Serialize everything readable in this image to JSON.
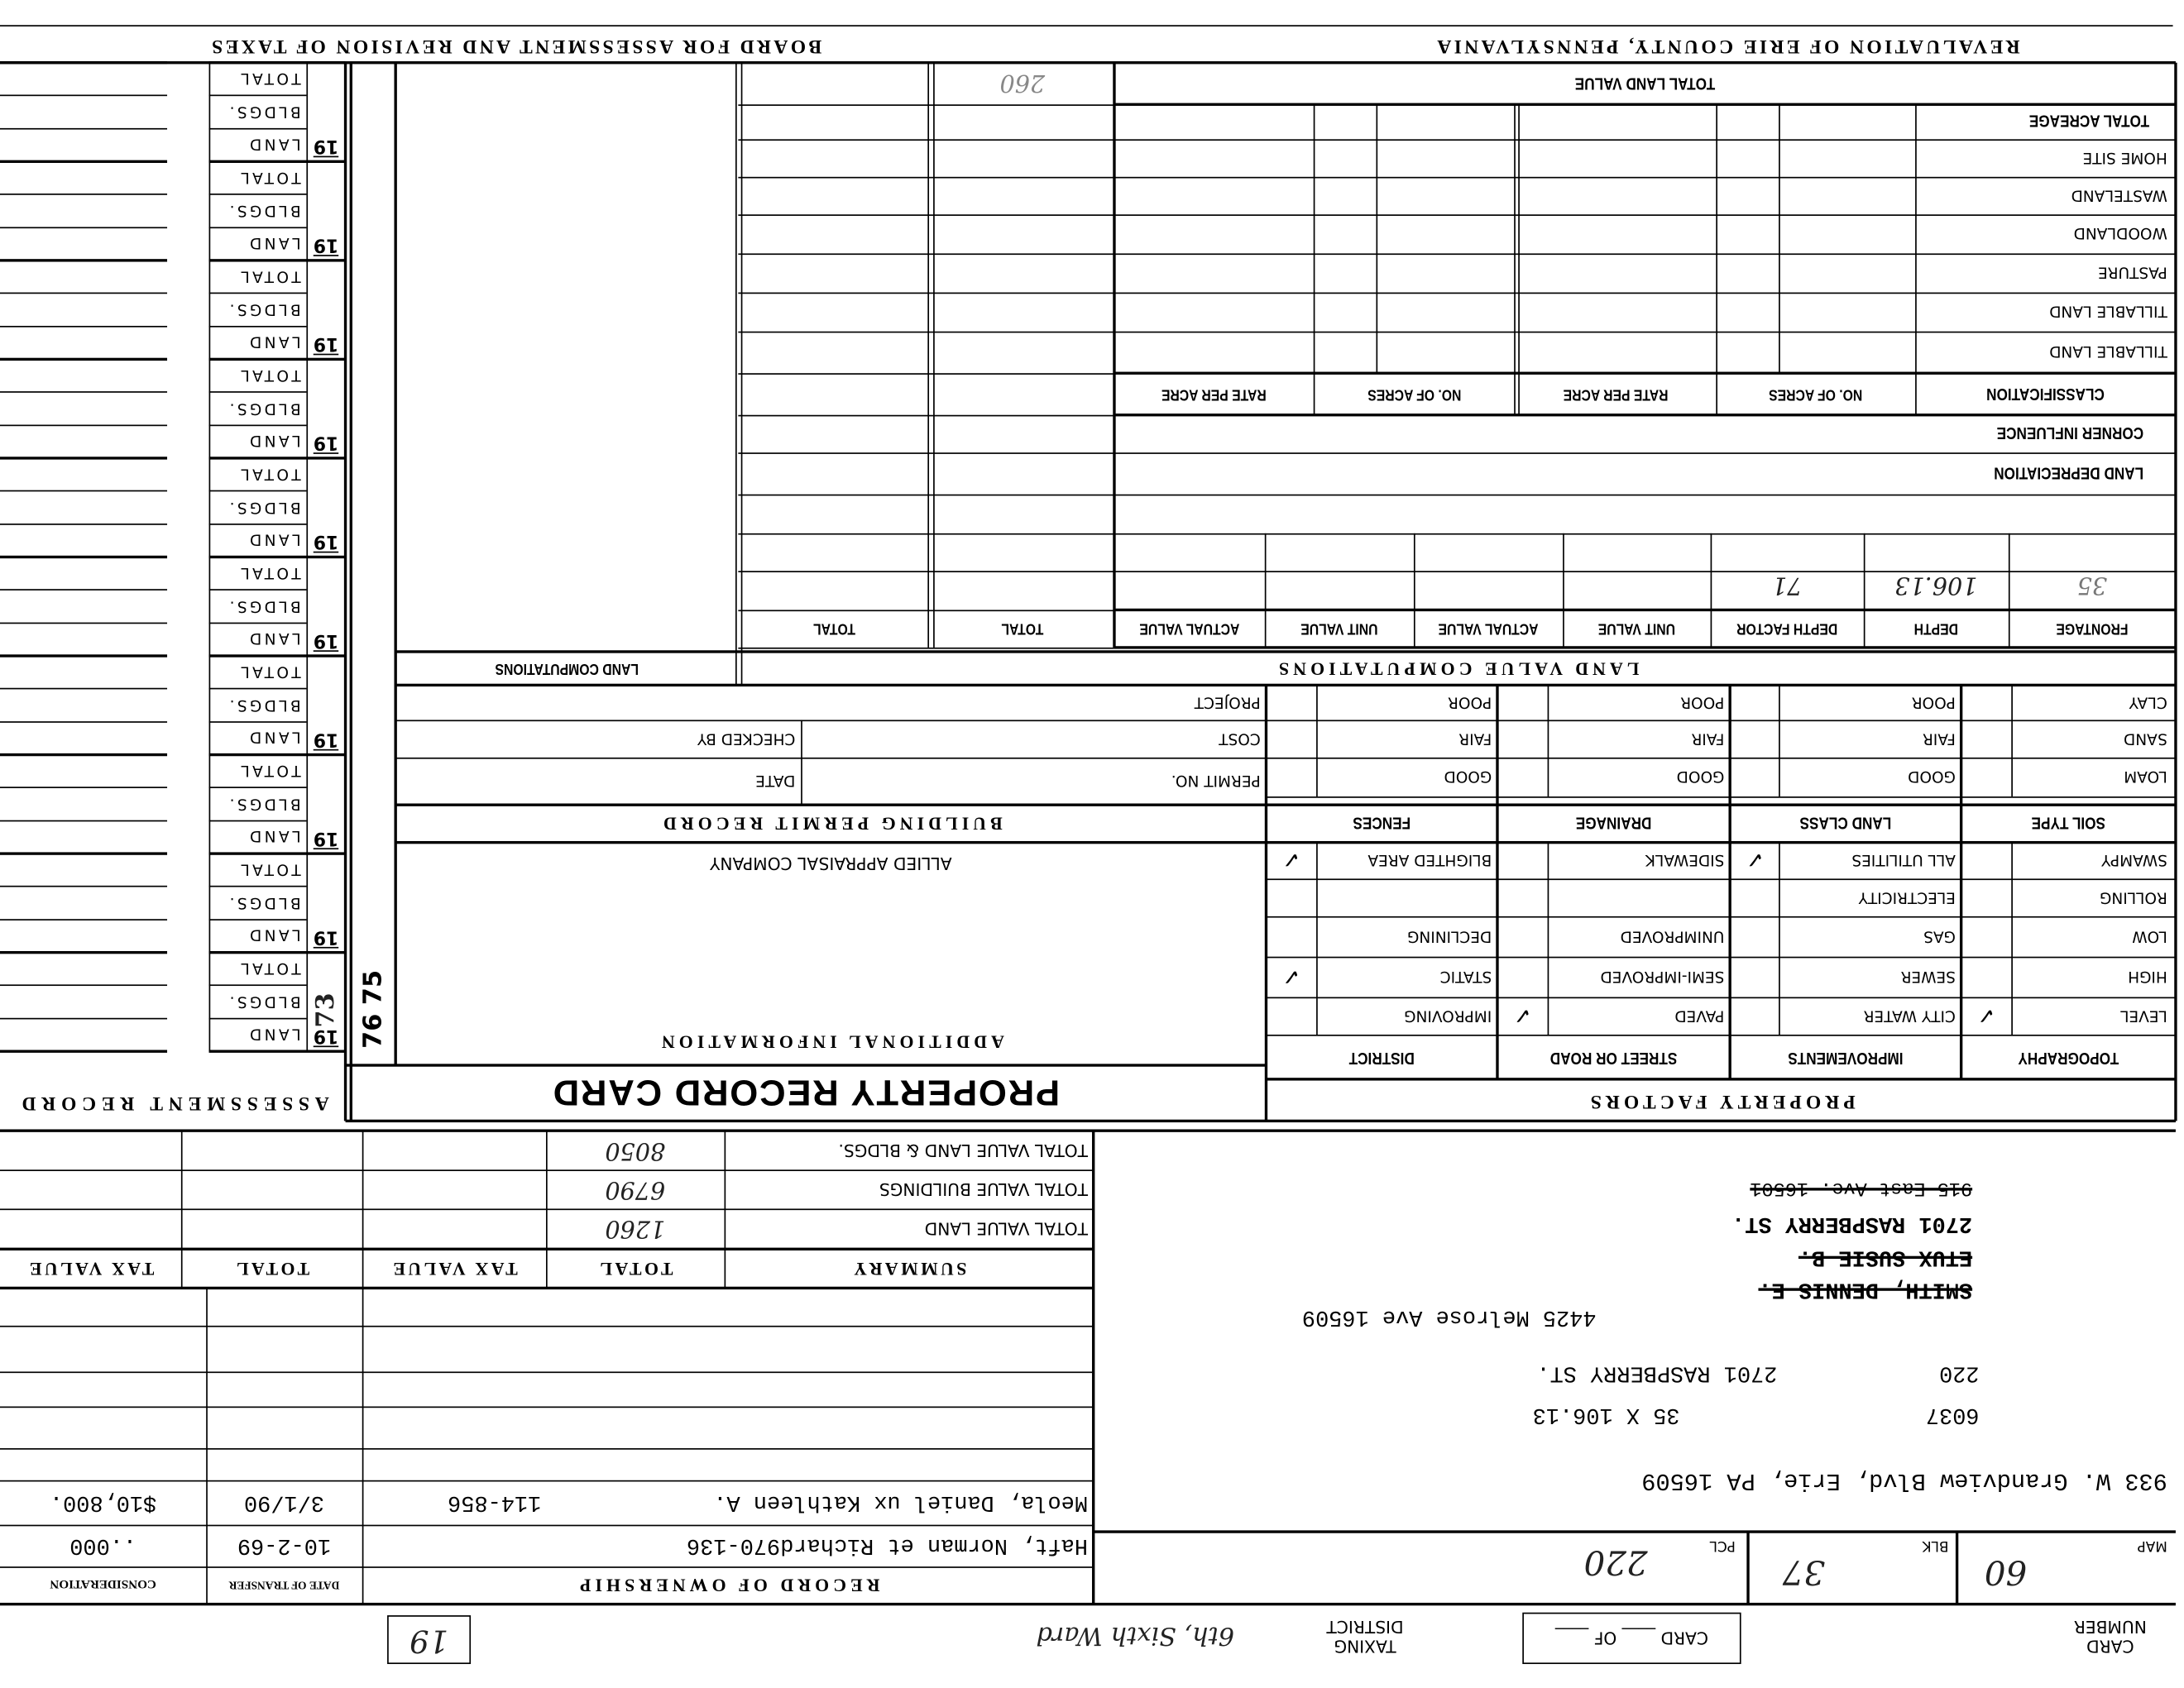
{
  "header": {
    "left_title": "BOARD FOR ASSESSMENT AND REVISION OF TAXES",
    "right_title": "REVALUATION OF ERIE COUNTY, PENNSYLVANIA"
  },
  "assessment_record": {
    "title": "ASSESSMENT RECORD",
    "year_prefix": "19",
    "row_labels": [
      "TOTAL",
      "BLDGS.",
      "LAND"
    ],
    "group_count": 10,
    "last_year_suffix": "73",
    "stamp": "76 75"
  },
  "land_computations": {
    "title": "LAND COMPUTATIONS"
  },
  "land_value": {
    "title": "TOTAL LAND VALUE",
    "rows": [
      "TOTAL ACREAGE",
      "HOME SITE",
      "WASTELAND",
      "WOODLAND",
      "PASTURE",
      "TILLABLE LAND",
      "TILLABLE LAND"
    ],
    "classification_header": "CLASSIFICATION",
    "col_headers": [
      "NO. OF ACRES",
      "RATE PER ACRE",
      "NO. OF ACRES",
      "RATE PER ACRE"
    ],
    "corner_influence": "CORNER INFLUENCE",
    "land_depreciation": "LAND DEPRECIATION",
    "handwritten_total": "260"
  },
  "land_value_computations": {
    "title": "LAND VALUE COMPUTATIONS",
    "headers": [
      "FRONTAGE",
      "DEPTH",
      "DEPTH FACTOR",
      "UNIT VALUE",
      "ACTUAL VALUE",
      "UNIT VALUE",
      "ACTUAL VALUE",
      "TOTAL",
      "TOTAL"
    ],
    "frontage": "35",
    "depth": "106.13",
    "depth_factor": "71"
  },
  "soil": {
    "headers": [
      "SOIL TYPE",
      "LAND CLASS",
      "DRAINAGE",
      "FENCES"
    ],
    "soil_types": [
      "CLAY",
      "SAND",
      "LOAM"
    ],
    "grades": [
      "POOR",
      "FAIR",
      "GOOD"
    ]
  },
  "property_factors": {
    "title": "PROPERTY FACTORS",
    "headers": [
      "TOPOGRAPHY",
      "IMPROVEMENTS",
      "STREET OR ROAD",
      "DISTRICT"
    ],
    "topography": [
      "SWAMPY",
      "ROLLING",
      "LOW",
      "HIGH",
      "LEVEL"
    ],
    "improvements": [
      "ALL UTILITIES",
      "ELECTRICITY",
      "GAS",
      "SEWER",
      "CITY WATER"
    ],
    "street": [
      "SIDEWALK",
      "",
      "UNIMPROVED",
      "SEMI-IMPROVED",
      "PAVED"
    ],
    "district": [
      "BLIGHTED AREA",
      "",
      "DECLINING",
      "STATIC",
      "IMPROVING"
    ],
    "checked": {
      "topography": "LEVEL",
      "improvements": "ALL UTILITIES",
      "street": "PAVED",
      "district": [
        "BLIGHTED AREA",
        "STATIC"
      ]
    },
    "check_mark": "✓"
  },
  "building_permit": {
    "title": "BUILDING PERMIT RECORD",
    "project": "PROJECT",
    "cost": "COST",
    "checked_by": "CHECKED BY",
    "permit_no": "PERMIT NO.",
    "date": "DATE"
  },
  "additional": {
    "company": "ALLIED APPRAISAL COMPANY",
    "title": "ADDITIONAL INFORMATION"
  },
  "card_title": "PROPERTY RECORD CARD",
  "summary": {
    "headers": [
      "SUMMARY",
      "TOTAL",
      "TAX VALUE",
      "TOTAL",
      "TAX VALUE"
    ],
    "rows": [
      {
        "label": "TOTAL VALUE LAND & BLDGS.",
        "total": "8050"
      },
      {
        "label": "TOTAL VALUE BUILDINGS",
        "total": "6790"
      },
      {
        "label": "TOTAL VALUE LAND",
        "total": "1260"
      }
    ]
  },
  "ownership": {
    "title": "RECORD OF OWNERSHIP",
    "date_header": "DATE OF TRANSFER",
    "consideration_header": "CONSIDERATION",
    "entries": [
      {
        "name": "Haft, Norman et Richard970-136",
        "deed": "",
        "date": "10-2-69",
        "consideration": "..000"
      },
      {
        "name": "Meola, Daniel ux Kathleen A.",
        "deed": "114-856",
        "date": "3/1/90",
        "consideration": "$10,800."
      }
    ]
  },
  "owner_block": {
    "old_address": "915 East Ave. 16501",
    "street": "2701 RASPBERRY ST.",
    "etux": "ETUX SUSIE B.",
    "old_owner": "SMITH, DENNIS E.",
    "mailing": "4425 Melrose Ave  16509",
    "code": "220",
    "location": "2701 RASPBERRY ST.",
    "lot_no": "6037",
    "lot_size": "35 X 106.13",
    "owner_address": "933 W. Grandview Blvd, Erie, PA 16509"
  },
  "parcel": {
    "map_label": "MAP",
    "map": "60",
    "blk_label": "BLK",
    "blk": "37",
    "pcl_label": "PCL",
    "pcl": "220"
  },
  "footer": {
    "card_number_label": "CARD NUMBER",
    "card_of_label": "CARD ____ OF ____",
    "taxing_district_label": "TAXING DISTRICT",
    "taxing_district": "6th, Sixth Ward",
    "ward_box": "19"
  }
}
